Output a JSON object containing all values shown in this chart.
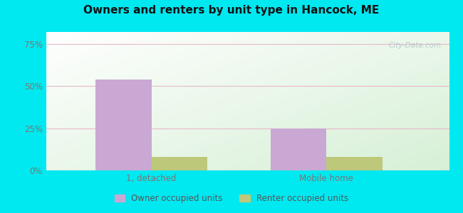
{
  "title": "Owners and renters by unit type in Hancock, ME",
  "categories": [
    "1, detached",
    "Mobile home"
  ],
  "owner_values": [
    54,
    25
  ],
  "renter_values": [
    8,
    8
  ],
  "owner_color": "#c9a8d4",
  "renter_color": "#bec87a",
  "yticks": [
    0,
    25,
    50,
    75
  ],
  "ytick_labels": [
    "0%",
    "25%",
    "50%",
    "75%"
  ],
  "ylim": [
    0,
    82
  ],
  "bar_width": 0.32,
  "outer_bg": "#00e8f0",
  "plot_bg_left": "#cce8cc",
  "plot_bg_right": "#f0fff0",
  "plot_bg_top": "#ffffff",
  "legend_owner": "Owner occupied units",
  "legend_renter": "Renter occupied units",
  "watermark": "City-Data.com",
  "title_fontsize": 11,
  "tick_fontsize": 8.5,
  "legend_fontsize": 8.5
}
